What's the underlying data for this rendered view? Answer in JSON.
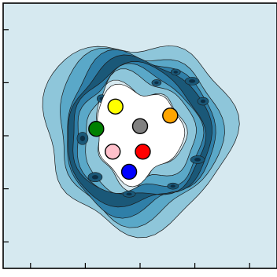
{
  "chart_data": {
    "type": "scatter",
    "title": "",
    "xlabel": "",
    "ylabel": "",
    "xlim": [
      -2.5,
      2.5
    ],
    "ylim": [
      -2.5,
      2.5
    ],
    "x_ticks": [
      -2,
      -1,
      0,
      1,
      2
    ],
    "y_ticks": [
      -2,
      -1,
      0,
      1,
      2
    ],
    "tick_labels_visible": false,
    "grid": false,
    "legend": "none",
    "background_color": "#d6e9f0",
    "contour": {
      "type": "filled-density-ring",
      "description_levels": 5,
      "level_colors": [
        "#ffffff",
        "#8ec6da",
        "#5aa8c8",
        "#2f7fa8",
        "#1a5878",
        "#0d2f45"
      ],
      "outline_color": "#1a1a1a"
    },
    "series": [
      {
        "points": [
          {
            "x": -0.45,
            "y": 0.55,
            "color": "#ffff00"
          },
          {
            "x": 0.55,
            "y": 0.38,
            "color": "#ffa500"
          },
          {
            "x": 0.0,
            "y": 0.18,
            "color": "#808080"
          },
          {
            "x": -0.8,
            "y": 0.13,
            "color": "#008000"
          },
          {
            "x": -0.5,
            "y": -0.3,
            "color": "#ffc0cb"
          },
          {
            "x": 0.05,
            "y": -0.3,
            "color": "#ff0000"
          },
          {
            "x": -0.2,
            "y": -0.68,
            "color": "#0000ff"
          }
        ]
      }
    ]
  }
}
